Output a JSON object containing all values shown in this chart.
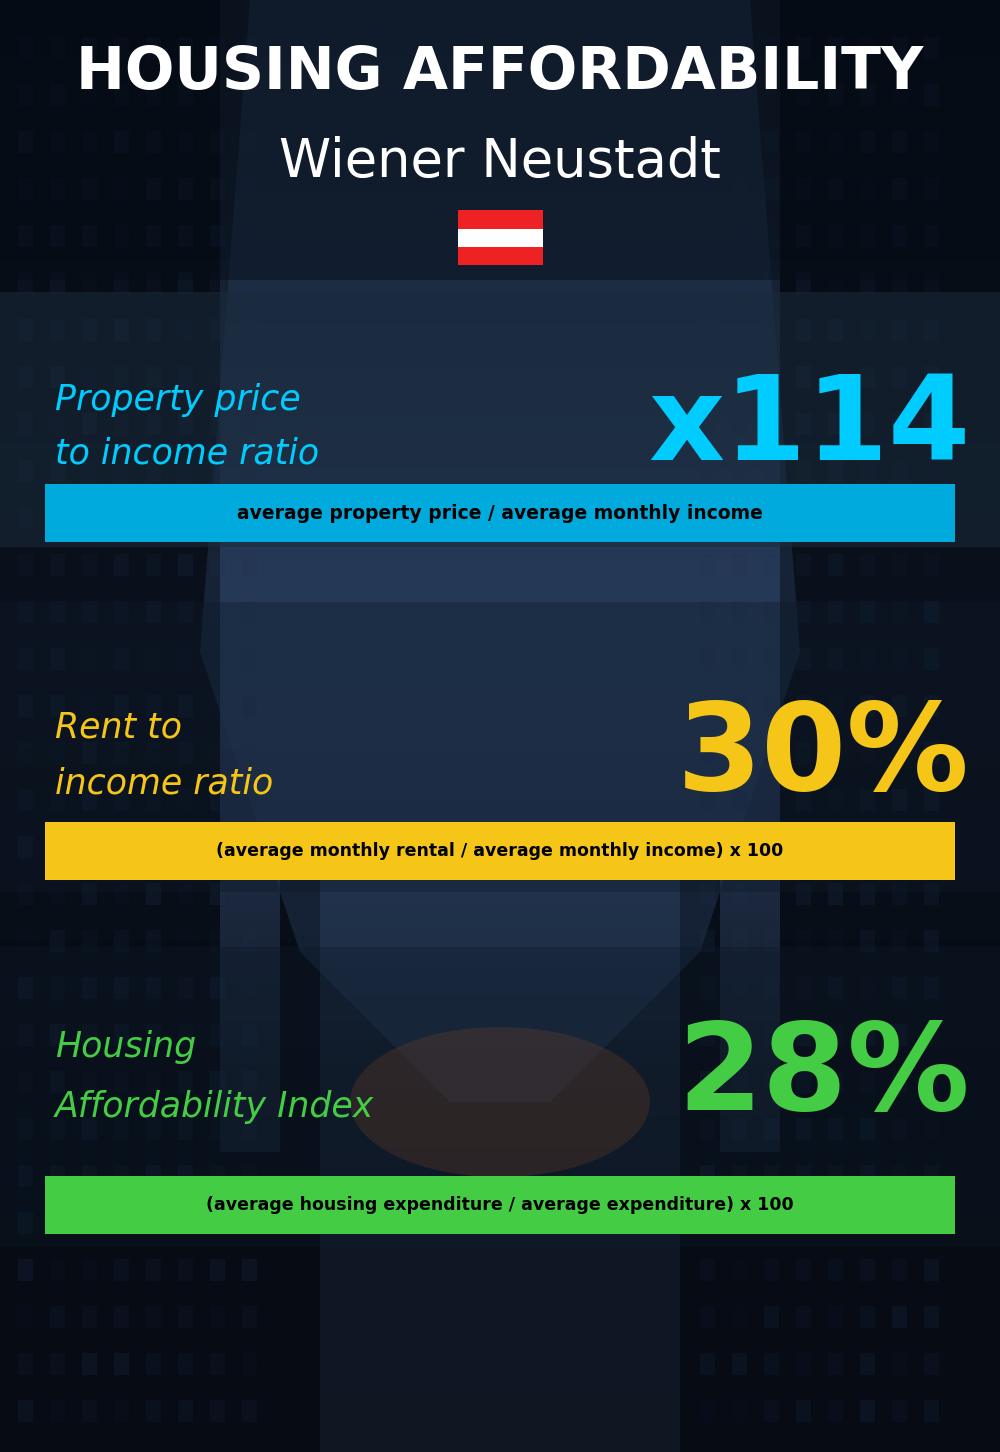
{
  "title_line1": "HOUSING AFFORDABILITY",
  "title_line2": "Wiener Neustadt",
  "background_color": "#0d1520",
  "title1_color": "#ffffff",
  "title2_color": "#ffffff",
  "section1_label_line1": "Property price",
  "section1_label_line2": "to income ratio",
  "section1_value": "x114",
  "section1_label_color": "#00ccff",
  "section1_value_color": "#00ccff",
  "section1_banner_text": "average property price / average monthly income",
  "section1_banner_bg": "#00aadd",
  "section1_banner_text_color": "#000000",
  "section2_label_line1": "Rent to",
  "section2_label_line2": "income ratio",
  "section2_value": "30%",
  "section2_label_color": "#f5c518",
  "section2_value_color": "#f5c518",
  "section2_banner_text": "(average monthly rental / average monthly income) x 100",
  "section2_banner_bg": "#f5c518",
  "section2_banner_text_color": "#000000",
  "section3_label_line1": "Housing",
  "section3_label_line2": "Affordability Index",
  "section3_value": "28%",
  "section3_label_color": "#44cc44",
  "section3_value_color": "#44cc44",
  "section3_banner_text": "(average housing expenditure / average expenditure) x 100",
  "section3_banner_bg": "#44cc44",
  "section3_banner_text_color": "#000000",
  "flag_red": "#ee2222",
  "flag_white": "#ffffff"
}
